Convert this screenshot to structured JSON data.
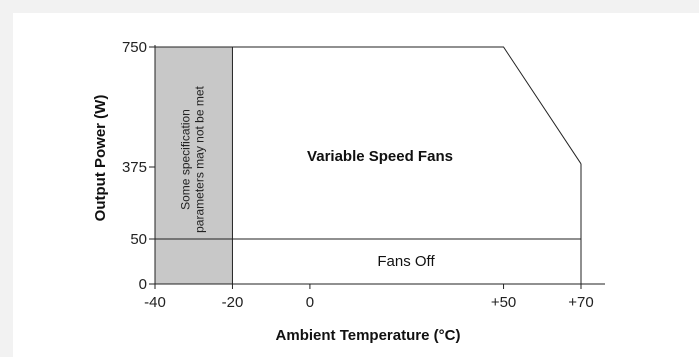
{
  "chart_data": {
    "type": "area",
    "xlabel": "Ambient Temperature (°C)",
    "ylabel": "Output Power (W)",
    "x_ticks": [
      {
        "value": -40,
        "label": "-40"
      },
      {
        "value": -20,
        "label": "-20"
      },
      {
        "value": 0,
        "label": "0"
      },
      {
        "value": 50,
        "label": "+50"
      },
      {
        "value": 70,
        "label": "+70"
      }
    ],
    "y_ticks": [
      {
        "value": 0,
        "label": "0"
      },
      {
        "value": 50,
        "label": "50"
      },
      {
        "value": 375,
        "label": "375"
      },
      {
        "value": 750,
        "label": "750"
      }
    ],
    "xlim": [
      -40,
      70
    ],
    "ylim": [
      0,
      750
    ],
    "derating_curve": {
      "x": [
        -40,
        50,
        70
      ],
      "y": [
        750,
        750,
        385
      ]
    },
    "fan_threshold_w": 50,
    "shaded_region": {
      "x_range": [
        -40,
        -20
      ],
      "label_line1": "Some specification",
      "label_line2": "parameters may not be met",
      "color": "#c8c8c8"
    },
    "regions": {
      "variable_speed": "Variable Speed Fans",
      "fans_off": "Fans Off"
    }
  }
}
